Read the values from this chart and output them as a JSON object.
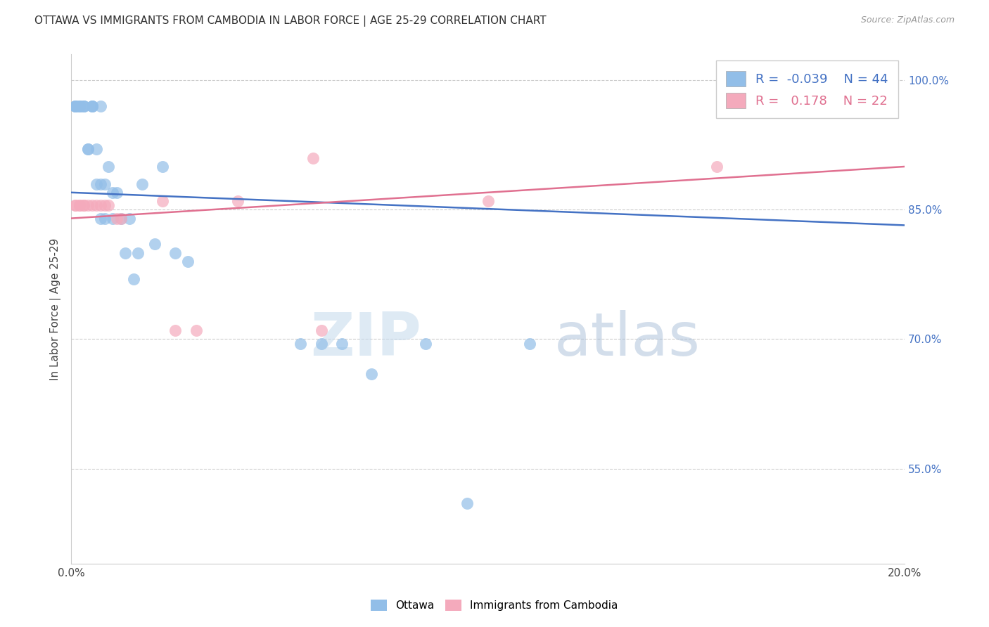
{
  "title": "OTTAWA VS IMMIGRANTS FROM CAMBODIA IN LABOR FORCE | AGE 25-29 CORRELATION CHART",
  "source": "Source: ZipAtlas.com",
  "ylabel": "In Labor Force | Age 25-29",
  "xlim": [
    0.0,
    0.2
  ],
  "ylim": [
    0.44,
    1.03
  ],
  "yticks": [
    0.55,
    0.7,
    0.85,
    1.0
  ],
  "ytick_labels": [
    "55.0%",
    "70.0%",
    "85.0%",
    "100.0%"
  ],
  "xticks": [
    0.0,
    0.04,
    0.08,
    0.12,
    0.16,
    0.2
  ],
  "xtick_labels": [
    "0.0%",
    "",
    "",
    "",
    "",
    "20.0%"
  ],
  "ottawa_R": -0.039,
  "ottawa_N": 44,
  "cambodia_R": 0.178,
  "cambodia_N": 22,
  "ottawa_color": "#92BEE8",
  "cambodia_color": "#F4AABC",
  "trend_ottawa_color": "#4472C4",
  "trend_cambodia_color": "#E07090",
  "watermark_zip": "ZIP",
  "watermark_atlas": "atlas",
  "legend_ottawa_label": "Ottawa",
  "legend_cambodia_label": "Immigrants from Cambodia",
  "trend_ottawa_x0": 0.0,
  "trend_ottawa_y0": 0.87,
  "trend_ottawa_x1": 0.2,
  "trend_ottawa_y1": 0.832,
  "trend_cambodia_x0": 0.0,
  "trend_cambodia_y0": 0.84,
  "trend_cambodia_x1": 0.2,
  "trend_cambodia_y1": 0.9,
  "ottawa_x": [
    0.001,
    0.001,
    0.001,
    0.001,
    0.002,
    0.002,
    0.002,
    0.003,
    0.003,
    0.003,
    0.004,
    0.004,
    0.005,
    0.005,
    0.005,
    0.006,
    0.006,
    0.007,
    0.007,
    0.007,
    0.008,
    0.008,
    0.009,
    0.01,
    0.01,
    0.011,
    0.012,
    0.013,
    0.014,
    0.015,
    0.016,
    0.017,
    0.02,
    0.022,
    0.025,
    0.028,
    0.055,
    0.06,
    0.065,
    0.072,
    0.085,
    0.095,
    0.11,
    0.195
  ],
  "ottawa_y": [
    0.97,
    0.97,
    0.97,
    0.97,
    0.97,
    0.97,
    0.97,
    0.97,
    0.97,
    0.97,
    0.92,
    0.92,
    0.97,
    0.97,
    0.97,
    0.92,
    0.88,
    0.97,
    0.88,
    0.84,
    0.88,
    0.84,
    0.9,
    0.87,
    0.84,
    0.87,
    0.84,
    0.8,
    0.84,
    0.77,
    0.8,
    0.88,
    0.81,
    0.9,
    0.8,
    0.79,
    0.695,
    0.695,
    0.695,
    0.66,
    0.695,
    0.51,
    0.695,
    1.0
  ],
  "cambodia_x": [
    0.001,
    0.001,
    0.002,
    0.002,
    0.003,
    0.003,
    0.004,
    0.005,
    0.006,
    0.007,
    0.008,
    0.009,
    0.011,
    0.012,
    0.022,
    0.025,
    0.03,
    0.04,
    0.058,
    0.06,
    0.1,
    0.155
  ],
  "cambodia_y": [
    0.855,
    0.855,
    0.855,
    0.855,
    0.855,
    0.855,
    0.855,
    0.855,
    0.855,
    0.855,
    0.855,
    0.855,
    0.84,
    0.84,
    0.86,
    0.71,
    0.71,
    0.86,
    0.91,
    0.71,
    0.86,
    0.9
  ]
}
